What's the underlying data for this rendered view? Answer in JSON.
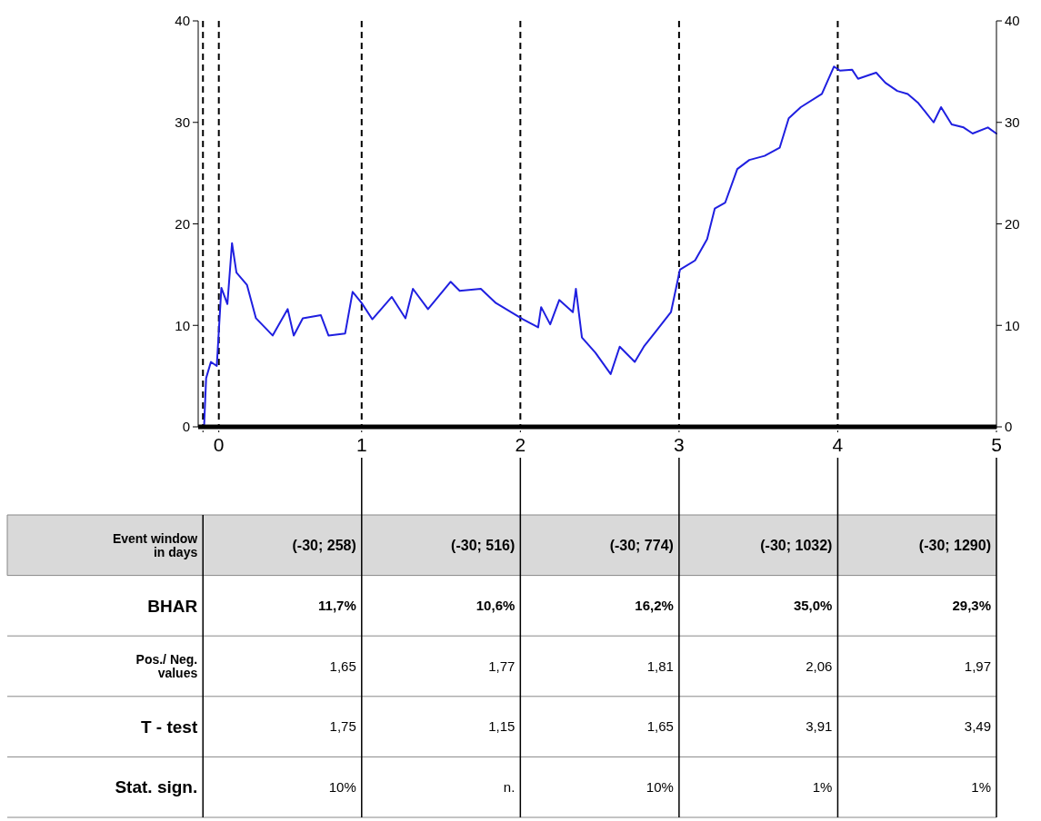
{
  "chart_data": {
    "type": "line",
    "series": [
      {
        "color": "#1f1fe0",
        "x": [
          0.007,
          0.02,
          0.05,
          0.087,
          0.116,
          0.154,
          0.183,
          0.211,
          0.277,
          0.334,
          0.439,
          0.534,
          0.572,
          0.629,
          0.743,
          0.791,
          0.896,
          0.943,
          1.0,
          1.067,
          1.19,
          1.276,
          1.323,
          1.418,
          1.561,
          1.618,
          1.751,
          1.846,
          2.017,
          2.112,
          2.131,
          2.188,
          2.245,
          2.331,
          2.35,
          2.388,
          2.473,
          2.569,
          2.626,
          2.721,
          2.778,
          2.854,
          2.949,
          3.006,
          3.101,
          3.177,
          3.225,
          3.291,
          3.367,
          3.443,
          3.539,
          3.634,
          3.691,
          3.767,
          3.9,
          3.976,
          4.014,
          4.09,
          4.128,
          4.242,
          4.3,
          4.375,
          4.441,
          4.508,
          4.604,
          4.651,
          4.718,
          4.793,
          4.85,
          4.946,
          4.999
        ],
        "values": [
          0,
          4.8,
          6.4,
          6.0,
          13.7,
          12.1,
          18.1,
          15.2,
          14.0,
          10.7,
          9.0,
          11.6,
          9.0,
          10.7,
          11.0,
          9.0,
          9.2,
          13.3,
          12.2,
          10.6,
          12.8,
          10.7,
          13.6,
          11.6,
          14.3,
          13.4,
          13.6,
          12.2,
          10.6,
          9.8,
          11.8,
          10.1,
          12.5,
          11.3,
          13.6,
          8.8,
          7.3,
          5.2,
          7.9,
          6.4,
          7.9,
          9.4,
          11.3,
          15.5,
          16.4,
          18.5,
          21.5,
          22.1,
          25.4,
          26.3,
          26.7,
          27.5,
          30.4,
          31.5,
          32.8,
          35.5,
          35.1,
          35.2,
          34.3,
          34.9,
          33.9,
          33.1,
          32.8,
          31.9,
          30.0,
          31.5,
          29.8,
          29.5,
          28.9,
          29.5,
          28.9
        ]
      }
    ],
    "xlim": [
      -0.03,
      5
    ],
    "xticks": [
      {
        "value": 0,
        "label": null
      },
      {
        "value": 0.1,
        "label": "0"
      },
      1,
      2,
      3,
      4,
      5
    ],
    "ylim": [
      0,
      40
    ],
    "yticks": [
      0,
      10,
      20,
      30,
      40
    ],
    "y2lim": [
      0,
      40
    ],
    "y2ticks": [
      0,
      10,
      20,
      30,
      40
    ],
    "line_style": "solid",
    "marker": "none",
    "grid": false,
    "ref_lines": [
      {
        "axis": "x",
        "value": 0,
        "color": "#000000",
        "line_style": "dashed"
      },
      {
        "axis": "x",
        "value": 0.1,
        "color": "#000000",
        "line_style": "dashed"
      },
      {
        "axis": "x",
        "value": 1,
        "color": "#000000",
        "line_style": "dashed"
      },
      {
        "axis": "x",
        "value": 2,
        "color": "#000000",
        "line_style": "dashed"
      },
      {
        "axis": "x",
        "value": 3,
        "color": "#000000",
        "line_style": "dashed"
      },
      {
        "axis": "x",
        "value": 4,
        "color": "#000000",
        "line_style": "dashed"
      }
    ],
    "annotations": [
      "Event window in days",
      "(-30; 258)",
      "(-30; 516)",
      "(-30; 774)",
      "(-30; 1032)",
      "(-30; 1290)",
      "BHAR",
      "11,7%",
      "10,6%",
      "16,2%",
      "35,0%",
      "29,3%",
      "Pos./ Neg. values",
      "1,65",
      "1,77",
      "1,81",
      "2,06",
      "1,97",
      "T - test",
      "1,75",
      "1,15",
      "1,65",
      "3,91",
      "3,49",
      "Stat. sign.",
      "10%",
      "n.",
      "10%",
      "1%",
      "1%"
    ]
  }
}
